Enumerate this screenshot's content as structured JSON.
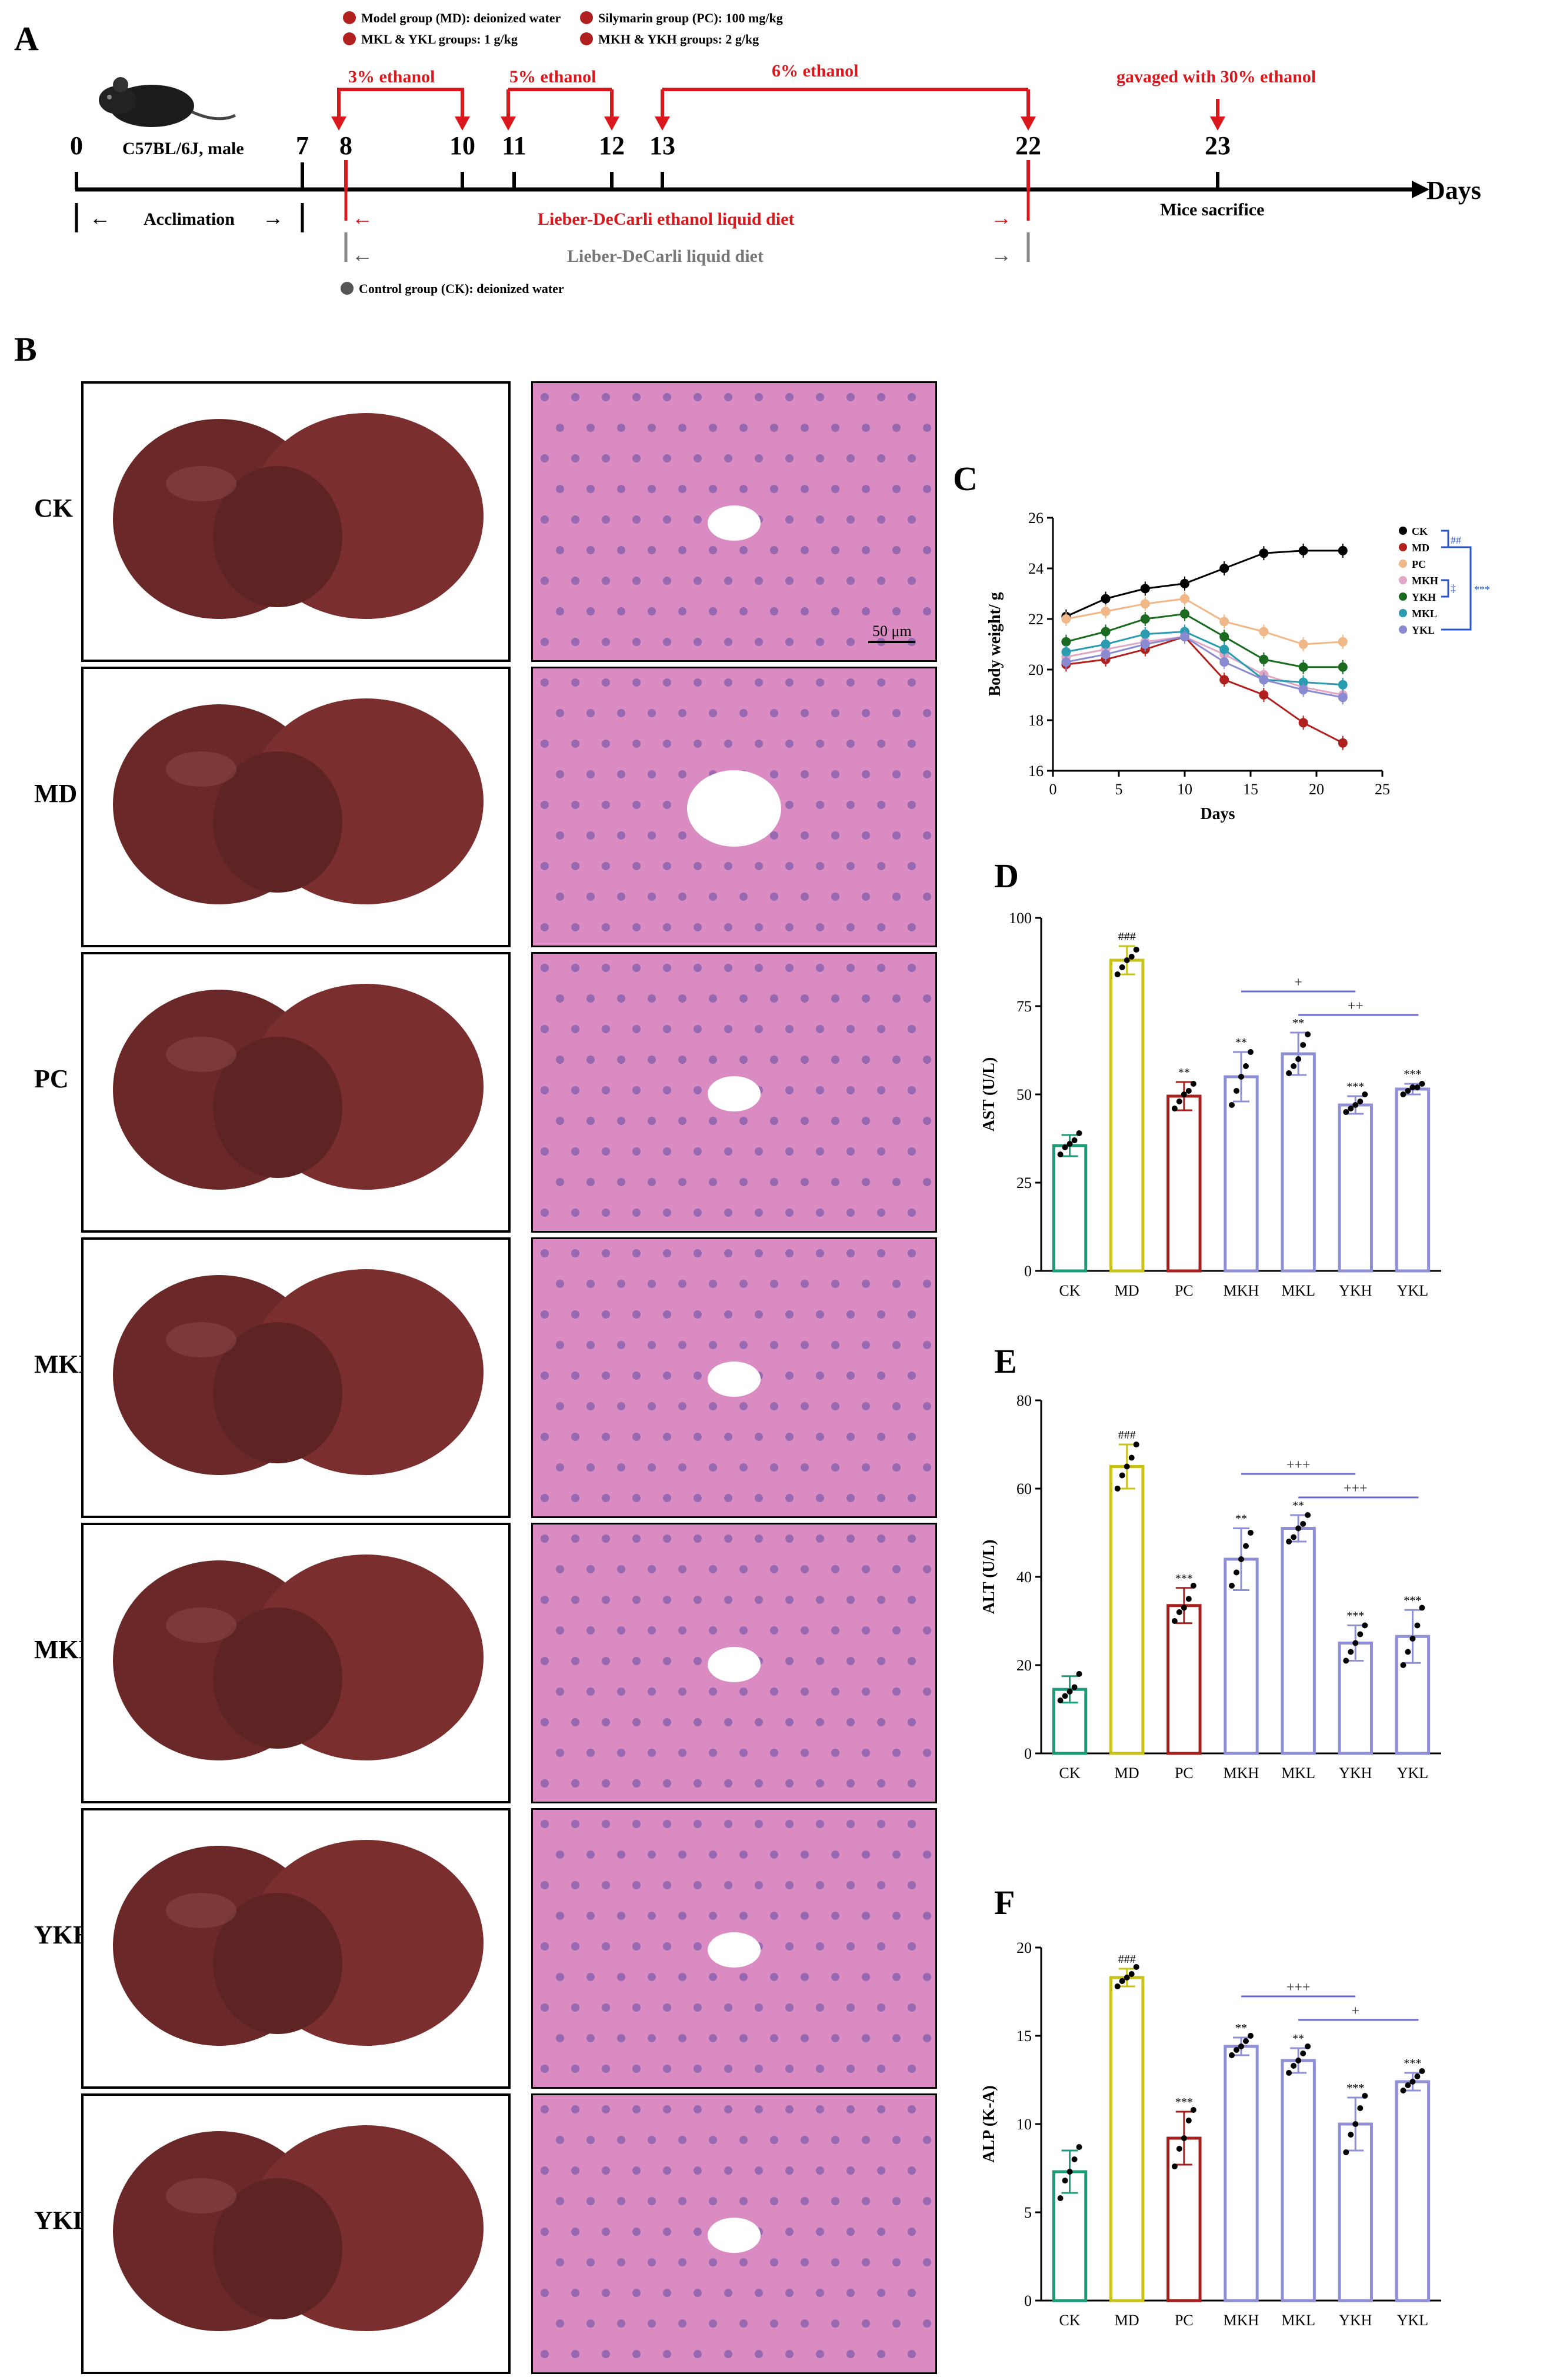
{
  "panels": {
    "a": "A",
    "b": "B",
    "c": "C",
    "d": "D",
    "e": "E",
    "f": "F"
  },
  "timeline": {
    "legend": [
      {
        "text": "Model group (MD): deionized water",
        "color": "#b0201e"
      },
      {
        "text": "Silymarin group (PC): 100 mg/kg",
        "color": "#b0201e"
      },
      {
        "text": "MKL & YKL groups: 1 g/kg",
        "color": "#b0201e"
      },
      {
        "text": "MKH & YKH groups: 2 g/kg",
        "color": "#b0201e"
      }
    ],
    "mouse_label": "C57BL/6J, male",
    "days": [
      "0",
      "7",
      "8",
      "10",
      "11",
      "12",
      "13",
      "22",
      "23"
    ],
    "phases": [
      "3% ethanol",
      "5% ethanol",
      "6% ethanol",
      "gavaged with 30% ethanol"
    ],
    "acclimation": "Acclimation",
    "ethanol_diet": "Lieber-DeCarli ethanol liquid diet",
    "control_diet": "Lieber-DeCarli liquid diet",
    "sacrifice": "Mice sacrifice",
    "axis_label": "Days",
    "control_group": "Control group (CK): deionized water",
    "arrow_left": "←",
    "arrow_right": "→"
  },
  "groups": [
    "CK",
    "MD",
    "PC",
    "MKH",
    "MKL",
    "YKH",
    "YKL"
  ],
  "scale_bar": "50 μm",
  "colors": {
    "CK": "#1a9c78",
    "MD": "#c8c21a",
    "PC": "#a5201f",
    "MKH": "#8f8fd6",
    "MKL": "#8f8fd6",
    "YKH": "#8f8fd6",
    "YKL": "#8f8fd6",
    "red": "#d8181c",
    "liver": "#6a2828",
    "histo": "#d98bc2"
  },
  "chart_data": [
    {
      "id": "C",
      "type": "line",
      "xlabel": "Days",
      "ylabel": "Body weight/ g",
      "xlim": [
        0,
        25
      ],
      "ylim": [
        16,
        26
      ],
      "xticks": [
        "0",
        "5",
        "10",
        "15",
        "20",
        "25"
      ],
      "yticks": [
        "16",
        "18",
        "20",
        "22",
        "24",
        "26"
      ],
      "x": [
        1,
        4,
        7,
        10,
        13,
        16,
        19,
        22
      ],
      "legend_position": "right",
      "series": [
        {
          "name": "CK",
          "color": "#000000",
          "values": [
            22.1,
            22.8,
            23.2,
            23.4,
            24.0,
            24.6,
            24.7,
            24.7
          ]
        },
        {
          "name": "MD",
          "color": "#b0201e",
          "values": [
            20.2,
            20.4,
            20.8,
            21.3,
            19.6,
            19.0,
            17.9,
            17.1
          ]
        },
        {
          "name": "PC",
          "color": "#f0b888",
          "values": [
            22.0,
            22.3,
            22.6,
            22.8,
            21.9,
            21.5,
            21.0,
            21.1
          ]
        },
        {
          "name": "MKH",
          "color": "#e0a8c4",
          "values": [
            20.5,
            20.8,
            21.1,
            21.3,
            20.6,
            19.8,
            19.3,
            19.0
          ]
        },
        {
          "name": "YKH",
          "color": "#1a6b20",
          "values": [
            21.1,
            21.5,
            22.0,
            22.2,
            21.3,
            20.4,
            20.1,
            20.1
          ]
        },
        {
          "name": "MKL",
          "color": "#2a9cb0",
          "values": [
            20.7,
            21.0,
            21.4,
            21.5,
            20.8,
            19.6,
            19.5,
            19.4
          ]
        },
        {
          "name": "YKL",
          "color": "#8a8ad0",
          "values": [
            20.3,
            20.6,
            21.0,
            21.3,
            20.3,
            19.6,
            19.2,
            18.9
          ]
        }
      ],
      "significance": [
        "##",
        "‡",
        "***"
      ]
    },
    {
      "id": "D",
      "type": "bar",
      "ylabel": "AST (U/L)",
      "ylim": [
        0,
        100
      ],
      "yticks": [
        "0",
        "25",
        "50",
        "75",
        "100"
      ],
      "categories": [
        "CK",
        "MD",
        "PC",
        "MKH",
        "MKL",
        "YKH",
        "YKL"
      ],
      "values": [
        35.5,
        88,
        49.5,
        55,
        61.5,
        47,
        51.5
      ],
      "errors": [
        3,
        4,
        4,
        7,
        6,
        2.5,
        1.5
      ],
      "points": [
        [
          33,
          35,
          36,
          37,
          39
        ],
        [
          84,
          86,
          88,
          89,
          91
        ],
        [
          46,
          48,
          50,
          51,
          53
        ],
        [
          47,
          51,
          55,
          58,
          62
        ],
        [
          56,
          58,
          60,
          64,
          67
        ],
        [
          45,
          46,
          47,
          48,
          50
        ],
        [
          50,
          51,
          52,
          52,
          53
        ]
      ],
      "labels": [
        "",
        "###",
        "**",
        "**",
        "**",
        "***",
        "***"
      ],
      "brackets": [
        {
          "from": "MKH",
          "to": "YKH",
          "label": "+"
        },
        {
          "from": "MKL",
          "to": "YKL",
          "label": "++"
        }
      ]
    },
    {
      "id": "E",
      "type": "bar",
      "ylabel": "ALT (U/L)",
      "ylim": [
        0,
        80
      ],
      "yticks": [
        "0",
        "20",
        "40",
        "60",
        "80"
      ],
      "categories": [
        "CK",
        "MD",
        "PC",
        "MKH",
        "MKL",
        "YKH",
        "YKL"
      ],
      "values": [
        14.5,
        65,
        33.5,
        44,
        51,
        25,
        26.5
      ],
      "errors": [
        3,
        5,
        4,
        7,
        3,
        4,
        6
      ],
      "points": [
        [
          12,
          13,
          14,
          15,
          18
        ],
        [
          60,
          63,
          65,
          67,
          70
        ],
        [
          30,
          32,
          33,
          35,
          38
        ],
        [
          38,
          41,
          44,
          47,
          50
        ],
        [
          48,
          49,
          51,
          52,
          54
        ],
        [
          21,
          23,
          25,
          27,
          29
        ],
        [
          20,
          23,
          26,
          29,
          33
        ]
      ],
      "labels": [
        "",
        "###",
        "***",
        "**",
        "**",
        "***",
        "***"
      ],
      "brackets": [
        {
          "from": "MKH",
          "to": "YKH",
          "label": "+++"
        },
        {
          "from": "MKL",
          "to": "YKL",
          "label": "+++"
        }
      ]
    },
    {
      "id": "F",
      "type": "bar",
      "ylabel": "ALP (K-A)",
      "ylim": [
        0,
        20
      ],
      "yticks": [
        "0",
        "5",
        "10",
        "15",
        "20"
      ],
      "categories": [
        "CK",
        "MD",
        "PC",
        "MKH",
        "MKL",
        "YKH",
        "YKL"
      ],
      "values": [
        7.3,
        18.3,
        9.2,
        14.4,
        13.6,
        10,
        12.4
      ],
      "errors": [
        1.2,
        0.5,
        1.5,
        0.5,
        0.7,
        1.5,
        0.5
      ],
      "points": [
        [
          5.8,
          6.8,
          7.3,
          8.0,
          8.7
        ],
        [
          17.8,
          18.1,
          18.3,
          18.5,
          18.9
        ],
        [
          7.6,
          8.6,
          9.2,
          10.2,
          10.8
        ],
        [
          13.9,
          14.2,
          14.4,
          14.7,
          15.0
        ],
        [
          12.9,
          13.3,
          13.6,
          14.0,
          14.4
        ],
        [
          8.4,
          9.4,
          10.0,
          10.9,
          11.6
        ],
        [
          11.9,
          12.2,
          12.4,
          12.7,
          13.0
        ]
      ],
      "labels": [
        "",
        "###",
        "***",
        "**",
        "**",
        "***",
        "***"
      ],
      "brackets": [
        {
          "from": "MKH",
          "to": "YKH",
          "label": "+++"
        },
        {
          "from": "MKL",
          "to": "YKL",
          "label": "+"
        }
      ]
    }
  ]
}
